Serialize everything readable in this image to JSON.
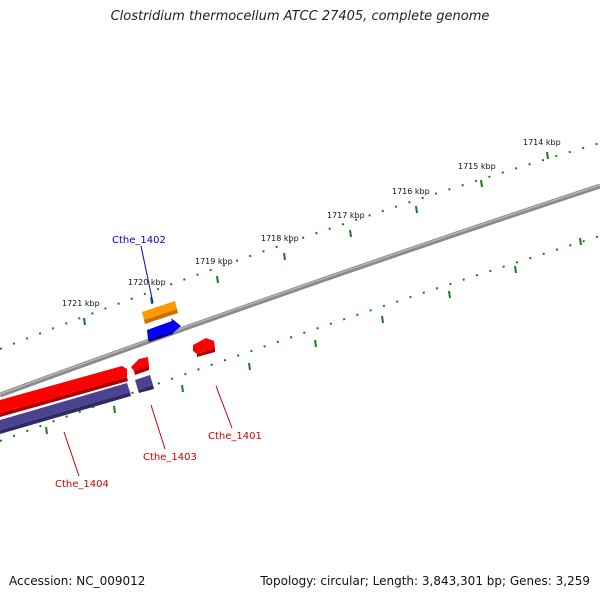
{
  "title": "Clostridium thermocellum ATCC 27405, complete genome",
  "footer": {
    "accession": "Accession: NC_009012",
    "stats": "Topology: circular; Length: 3,843,301 bp; Genes: 3,259"
  },
  "scale_labels": [
    "1714 kbp",
    "1715 kbp",
    "1716 kbp",
    "1717 kbp",
    "1718 kbp",
    "1719 kbp",
    "1720 kbp",
    "1721 kbp"
  ],
  "genes": [
    {
      "name": "Cthe_1401",
      "color": "#cc0000"
    },
    {
      "name": "Cthe_1402",
      "color": "#0000cc"
    },
    {
      "name": "Cthe_1403",
      "color": "#cc0000"
    },
    {
      "name": "Cthe_1404",
      "color": "#cc0000"
    }
  ],
  "colors": {
    "backbone": "#8a8a8a",
    "ticks": "#1a7a1a",
    "cds_forward": "#ff0000",
    "cds_reverse": "#0000ff",
    "orf_orange": "#ff9900",
    "orf_purple": "#4b4390"
  }
}
